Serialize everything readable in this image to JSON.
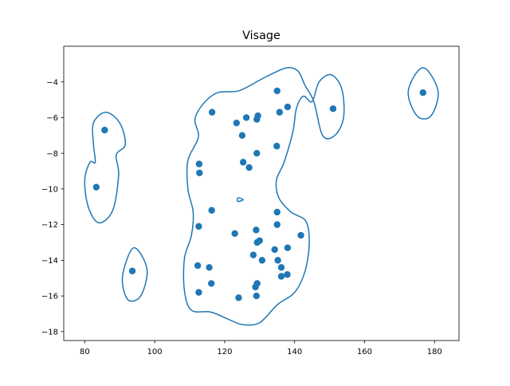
{
  "chart_data": {
    "type": "scatter",
    "title": "Visage",
    "xlabel": "",
    "ylabel": "",
    "xlim": [
      74,
      187
    ],
    "ylim": [
      -18.5,
      -2
    ],
    "x_ticks": [
      80,
      100,
      120,
      140,
      160,
      180
    ],
    "y_ticks": [
      -18,
      -16,
      -14,
      -12,
      -10,
      -8,
      -6,
      -4
    ],
    "grid": false,
    "colors": {
      "points": "#1f77b4",
      "contour": "#1f77b4"
    },
    "points": [
      {
        "x": 85.7,
        "y": -6.7
      },
      {
        "x": 83.3,
        "y": -9.9
      },
      {
        "x": 93.6,
        "y": -14.6
      },
      {
        "x": 116.4,
        "y": -5.7
      },
      {
        "x": 112.7,
        "y": -8.6
      },
      {
        "x": 112.8,
        "y": -9.1
      },
      {
        "x": 116.3,
        "y": -11.2
      },
      {
        "x": 112.6,
        "y": -12.1
      },
      {
        "x": 112.3,
        "y": -14.3
      },
      {
        "x": 115.6,
        "y": -14.4
      },
      {
        "x": 116.2,
        "y": -15.3
      },
      {
        "x": 112.6,
        "y": -15.8
      },
      {
        "x": 123.4,
        "y": -6.3
      },
      {
        "x": 126.2,
        "y": -6.0
      },
      {
        "x": 129.2,
        "y": -6.1
      },
      {
        "x": 129.5,
        "y": -5.9
      },
      {
        "x": 125.0,
        "y": -7.0
      },
      {
        "x": 129.2,
        "y": -8.0
      },
      {
        "x": 125.3,
        "y": -8.5
      },
      {
        "x": 127.0,
        "y": -8.8
      },
      {
        "x": 135.0,
        "y": -4.5
      },
      {
        "x": 135.7,
        "y": -5.7
      },
      {
        "x": 138.0,
        "y": -5.4
      },
      {
        "x": 134.9,
        "y": -7.6
      },
      {
        "x": 135.0,
        "y": -11.3
      },
      {
        "x": 135.0,
        "y": -12.0
      },
      {
        "x": 122.9,
        "y": -12.5
      },
      {
        "x": 129.0,
        "y": -12.3
      },
      {
        "x": 129.3,
        "y": -13.0
      },
      {
        "x": 130.0,
        "y": -12.9
      },
      {
        "x": 128.2,
        "y": -13.7
      },
      {
        "x": 130.7,
        "y": -14.0
      },
      {
        "x": 134.3,
        "y": -13.4
      },
      {
        "x": 135.2,
        "y": -14.0
      },
      {
        "x": 136.2,
        "y": -14.4
      },
      {
        "x": 138.0,
        "y": -13.3
      },
      {
        "x": 141.8,
        "y": -12.6
      },
      {
        "x": 136.2,
        "y": -14.9
      },
      {
        "x": 137.9,
        "y": -14.8
      },
      {
        "x": 129.3,
        "y": -15.3
      },
      {
        "x": 128.8,
        "y": -15.5
      },
      {
        "x": 129.1,
        "y": -16.0
      },
      {
        "x": 124.0,
        "y": -16.1
      },
      {
        "x": 151.0,
        "y": -5.5
      },
      {
        "x": 176.7,
        "y": -4.6
      }
    ],
    "contour": [
      [
        [
          86,
          -5.7
        ],
        [
          90,
          -6.3
        ],
        [
          91.6,
          -7.5
        ],
        [
          89,
          -8.1
        ],
        [
          89.7,
          -9.2
        ],
        [
          88,
          -11.2
        ],
        [
          84,
          -11.9
        ],
        [
          81,
          -11
        ],
        [
          80,
          -9.5
        ],
        [
          81.5,
          -8.5
        ],
        [
          83,
          -8.5
        ],
        [
          82.5,
          -7.5
        ],
        [
          82.5,
          -6.3
        ],
        [
          86,
          -5.7
        ]
      ],
      [
        [
          94,
          -13.3
        ],
        [
          97.8,
          -14.5
        ],
        [
          96,
          -16
        ],
        [
          92.3,
          -16.2
        ],
        [
          90.8,
          -14.9
        ],
        [
          94,
          -13.3
        ]
      ],
      [
        [
          176.7,
          -3.2
        ],
        [
          181,
          -4.5
        ],
        [
          179,
          -5.9
        ],
        [
          175,
          -5.9
        ],
        [
          172.5,
          -4.5
        ],
        [
          176.7,
          -3.2
        ]
      ],
      [
        [
          138,
          -3.2
        ],
        [
          134,
          -3.5
        ],
        [
          130,
          -3.9
        ],
        [
          124,
          -4.5
        ],
        [
          118,
          -4.6
        ],
        [
          114,
          -5.2
        ],
        [
          111.5,
          -6.1
        ],
        [
          112.5,
          -7.1
        ],
        [
          109.5,
          -8.4
        ],
        [
          109.5,
          -10
        ],
        [
          111,
          -11.3
        ],
        [
          110.5,
          -12.6
        ],
        [
          108.5,
          -13.9
        ],
        [
          108.5,
          -15.7
        ],
        [
          110.5,
          -16.8
        ],
        [
          116,
          -16.9
        ],
        [
          121,
          -17.3
        ],
        [
          125,
          -17.6
        ],
        [
          130,
          -17.5
        ],
        [
          135,
          -16.5
        ],
        [
          140,
          -15.8
        ],
        [
          143,
          -14.6
        ],
        [
          144.2,
          -13
        ],
        [
          143.2,
          -11.8
        ],
        [
          139,
          -11.3
        ],
        [
          135.5,
          -10.5
        ],
        [
          134.8,
          -9.5
        ],
        [
          137,
          -8.5
        ],
        [
          139.5,
          -6.8
        ],
        [
          140.5,
          -5.5
        ],
        [
          142.5,
          -4.8
        ],
        [
          145,
          -5.1
        ],
        [
          147,
          -4
        ],
        [
          150.5,
          -3.6
        ],
        [
          153.5,
          -4.4
        ],
        [
          154,
          -6
        ],
        [
          151.5,
          -7
        ],
        [
          148,
          -7
        ],
        [
          145.5,
          -5.1
        ],
        [
          143,
          -4.2
        ],
        [
          141,
          -3.4
        ],
        [
          138,
          -3.2
        ]
      ],
      [
        [
          123.8,
          -10.5
        ],
        [
          125.3,
          -10.6
        ],
        [
          123.8,
          -10.7
        ],
        [
          123.8,
          -10.5
        ]
      ]
    ]
  }
}
